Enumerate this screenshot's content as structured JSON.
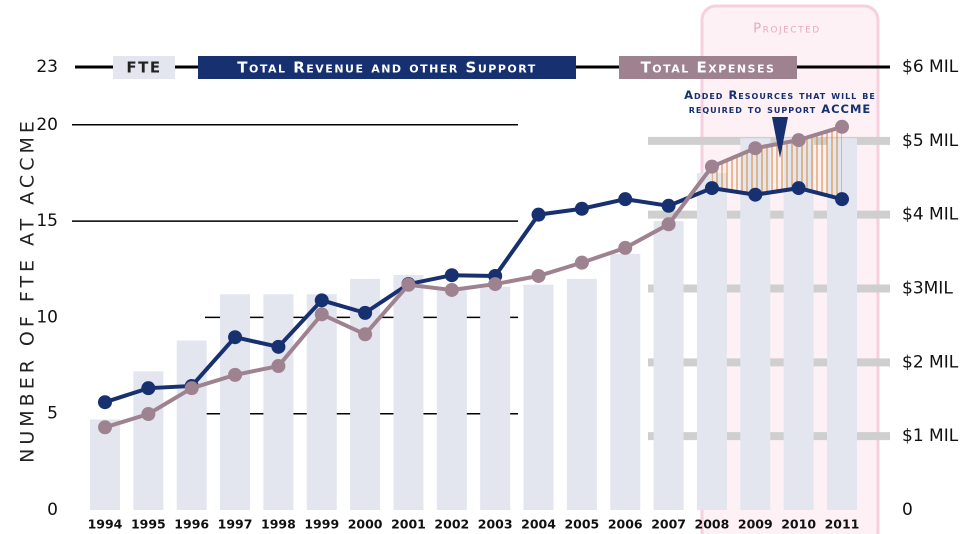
{
  "chart_data": {
    "type": "bar-line",
    "y_axis_label": "NUMBER OF FTE AT ACCME",
    "annotation": "Added Resources that will be required to support ACCME",
    "projected_label": "Projected",
    "legend": "top",
    "categories": [
      "1994",
      "1995",
      "1996",
      "1997",
      "1998",
      "1999",
      "2000",
      "2001",
      "2002",
      "2003",
      "2004",
      "2005",
      "2006",
      "2007",
      "2008",
      "2009",
      "2010",
      "2011"
    ],
    "ylim": [
      0,
      23
    ],
    "yticks": [
      0,
      5,
      10,
      15,
      20,
      23
    ],
    "y2lim": [
      0,
      6
    ],
    "y2ticks": [
      0,
      {
        "value": 1,
        "label": "$1 MIL"
      },
      {
        "value": 2,
        "label": "$2 MIL"
      },
      {
        "value": 3,
        "label": "$3MIL"
      },
      {
        "value": 4,
        "label": "$4 MIL"
      },
      {
        "value": 5,
        "label": "$5 MIL"
      },
      {
        "value": 6,
        "label": "$6 MIL"
      }
    ],
    "series": [
      {
        "name": "FTE",
        "type": "bar",
        "color": "#e3e6ef",
        "values": [
          4.7,
          7.2,
          8.8,
          11.2,
          11.2,
          11.2,
          12.0,
          12.2,
          11.4,
          11.6,
          11.7,
          12.0,
          13.3,
          15.0,
          17.5,
          19.3,
          19.3,
          19.3
        ]
      },
      {
        "name": "Total Revenue and other Support",
        "type": "line",
        "axis": "y2",
        "color": "#17306f",
        "values": [
          1.46,
          1.65,
          1.68,
          2.34,
          2.21,
          2.84,
          2.67,
          3.06,
          3.18,
          3.17,
          4.0,
          4.08,
          4.21,
          4.12,
          4.36,
          4.27,
          4.36,
          4.21
        ]
      },
      {
        "name": "Total Expenses",
        "type": "line",
        "axis": "y2",
        "color": "#9e8290",
        "values": [
          1.12,
          1.3,
          1.65,
          1.83,
          1.95,
          2.65,
          2.38,
          3.05,
          2.98,
          3.06,
          3.17,
          3.35,
          3.55,
          3.87,
          4.65,
          4.9,
          5.01,
          5.19
        ]
      }
    ]
  }
}
